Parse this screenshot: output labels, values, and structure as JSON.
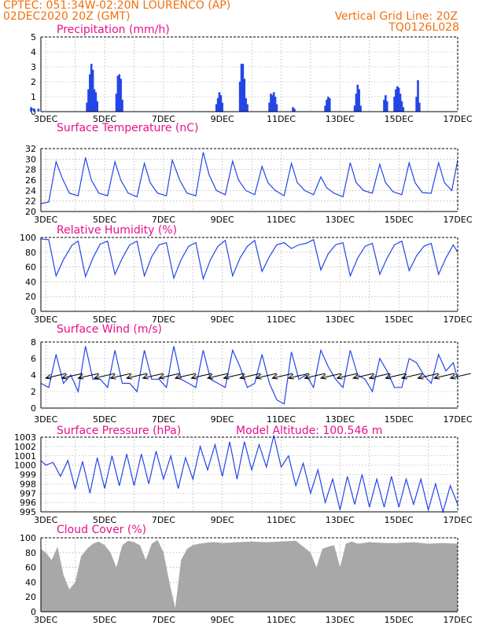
{
  "header": {
    "line1": "CPTEC:   051:34W-02:20N   LOURENCO (AP)",
    "line2": "02DEC2020 20Z (GMT)",
    "grid_note": "Vertical Grid Line: 20Z",
    "run_id": "TQ0126L028"
  },
  "colors": {
    "series": "#2346e6",
    "title": "#e8108a",
    "header": "#f07010",
    "cloud": "#a8a8a8",
    "grid": "#9a9a9a"
  },
  "x_axis": {
    "labels": [
      "3DEC",
      "5DEC",
      "7DEC",
      "9DEC",
      "11DEC",
      "13DEC",
      "15DEC",
      "17DEC"
    ],
    "day_start": 2.8333,
    "day_end": 17.0
  },
  "chart_data": [
    {
      "id": "precip",
      "type": "bar",
      "title": "Precipitation (mm/h)",
      "ylim": [
        0,
        5
      ],
      "yticks": [
        0,
        1,
        2,
        3,
        4,
        5
      ],
      "x": [
        2.5,
        2.6,
        2.75,
        4.4,
        4.45,
        4.5,
        4.55,
        4.6,
        4.65,
        4.7,
        4.75,
        5.4,
        5.45,
        5.5,
        5.55,
        5.6,
        8.8,
        8.85,
        8.9,
        8.95,
        9.0,
        9.6,
        9.65,
        9.7,
        9.75,
        9.8,
        9.85,
        10.6,
        10.65,
        10.7,
        10.75,
        10.8,
        10.85,
        11.4,
        11.45,
        12.5,
        12.55,
        12.6,
        12.65,
        13.5,
        13.55,
        13.6,
        13.65,
        13.7,
        14.5,
        14.55,
        14.6,
        14.85,
        14.9,
        14.95,
        15.0,
        15.05,
        15.1,
        15.15,
        15.6,
        15.65,
        15.7
      ],
      "values": [
        0.3,
        0.2,
        0.2,
        0.6,
        1.5,
        2.5,
        3.2,
        2.8,
        1.5,
        1.3,
        0.7,
        1.2,
        2.4,
        2.5,
        2.2,
        0.8,
        0.5,
        0.9,
        1.3,
        1.1,
        0.6,
        2.0,
        3.2,
        3.2,
        2.2,
        0.9,
        0.5,
        0.6,
        1.2,
        1.1,
        1.3,
        1.0,
        0.5,
        0.3,
        0.2,
        0.4,
        0.8,
        1.0,
        0.9,
        0.4,
        1.2,
        1.8,
        1.5,
        0.4,
        0.8,
        1.1,
        0.7,
        1.0,
        1.5,
        1.7,
        1.6,
        1.2,
        0.7,
        0.3,
        1.0,
        2.1,
        0.6
      ]
    },
    {
      "id": "temp",
      "type": "line",
      "title": "Surface Temperature (nC)",
      "ylim": [
        20,
        32
      ],
      "yticks": [
        20,
        22,
        24,
        26,
        28,
        30,
        32
      ],
      "x": [
        2.83,
        3.1,
        3.35,
        3.55,
        3.8,
        4.1,
        4.35,
        4.55,
        4.8,
        5.1,
        5.35,
        5.55,
        5.8,
        6.1,
        6.35,
        6.55,
        6.8,
        7.1,
        7.3,
        7.55,
        7.8,
        8.1,
        8.35,
        8.55,
        8.8,
        9.1,
        9.35,
        9.55,
        9.8,
        10.1,
        10.35,
        10.55,
        10.8,
        11.1,
        11.35,
        11.55,
        11.8,
        12.1,
        12.35,
        12.55,
        12.8,
        13.1,
        13.35,
        13.55,
        13.8,
        14.1,
        14.35,
        14.55,
        14.8,
        15.1,
        15.35,
        15.55,
        15.8,
        16.1,
        16.35,
        16.55,
        16.8,
        17.0
      ],
      "values": [
        21.5,
        21.8,
        29.5,
        26.5,
        23.5,
        23.0,
        30.3,
        26.0,
        23.5,
        23.0,
        29.5,
        26.0,
        23.5,
        22.8,
        29.2,
        25.5,
        23.5,
        23.0,
        29.8,
        26.0,
        23.5,
        23.0,
        31.3,
        27.0,
        24.0,
        23.2,
        29.6,
        26.0,
        24.0,
        23.2,
        28.6,
        25.5,
        24.0,
        23.0,
        29.2,
        25.5,
        24.0,
        23.2,
        26.6,
        24.5,
        23.5,
        22.8,
        29.3,
        25.5,
        24.0,
        23.5,
        29.0,
        25.5,
        23.8,
        23.2,
        29.3,
        25.5,
        23.6,
        23.5,
        29.3,
        25.5,
        24.0,
        29.8
      ]
    },
    {
      "id": "rh",
      "type": "line",
      "title": "Relative Humidity (%)",
      "ylim": [
        0,
        100
      ],
      "yticks": [
        0,
        20,
        40,
        60,
        80,
        100
      ],
      "x": [
        2.83,
        3.1,
        3.35,
        3.6,
        3.9,
        4.1,
        4.35,
        4.6,
        4.85,
        5.1,
        5.35,
        5.6,
        5.85,
        6.1,
        6.35,
        6.6,
        6.85,
        7.1,
        7.35,
        7.6,
        7.85,
        8.1,
        8.35,
        8.6,
        8.85,
        9.1,
        9.35,
        9.6,
        9.85,
        10.1,
        10.35,
        10.6,
        10.85,
        11.1,
        11.35,
        11.6,
        11.85,
        12.1,
        12.35,
        12.6,
        12.85,
        13.1,
        13.35,
        13.6,
        13.85,
        14.1,
        14.35,
        14.6,
        14.85,
        15.1,
        15.35,
        15.6,
        15.85,
        16.1,
        16.35,
        16.6,
        16.85,
        17.0
      ],
      "values": [
        98,
        97,
        48,
        70,
        90,
        95,
        47,
        72,
        91,
        95,
        50,
        72,
        90,
        95,
        48,
        74,
        90,
        93,
        45,
        70,
        88,
        93,
        44,
        70,
        88,
        96,
        48,
        72,
        88,
        96,
        54,
        74,
        90,
        93,
        85,
        90,
        92,
        97,
        56,
        78,
        90,
        93,
        48,
        72,
        88,
        92,
        50,
        72,
        90,
        95,
        55,
        75,
        88,
        92,
        50,
        72,
        90,
        80
      ]
    },
    {
      "id": "wind",
      "type": "line",
      "title": "Surface Wind (m/s)",
      "ylim": [
        0,
        8
      ],
      "yticks": [
        0,
        2,
        4,
        6,
        8
      ],
      "x": [
        2.83,
        3.1,
        3.35,
        3.6,
        3.85,
        4.1,
        4.35,
        4.6,
        4.85,
        5.1,
        5.35,
        5.6,
        5.85,
        6.1,
        6.35,
        6.6,
        6.85,
        7.1,
        7.35,
        7.6,
        7.85,
        8.1,
        8.35,
        8.6,
        8.85,
        9.1,
        9.35,
        9.6,
        9.85,
        10.1,
        10.35,
        10.6,
        10.85,
        11.1,
        11.35,
        11.6,
        11.85,
        12.1,
        12.35,
        12.6,
        12.85,
        13.1,
        13.35,
        13.6,
        13.85,
        14.1,
        14.35,
        14.6,
        14.85,
        15.1,
        15.35,
        15.6,
        15.85,
        16.1,
        16.35,
        16.6,
        16.85,
        17.0
      ],
      "values": [
        3.0,
        2.5,
        6.5,
        3.0,
        4.0,
        2.0,
        7.5,
        3.5,
        3.5,
        2.5,
        7.0,
        3.0,
        3.0,
        2.0,
        7.0,
        3.5,
        3.5,
        2.5,
        7.5,
        3.5,
        3.0,
        2.5,
        7.0,
        3.5,
        3.0,
        2.5,
        7.0,
        5.0,
        2.5,
        3.0,
        6.5,
        3.0,
        1.0,
        0.5,
        6.8,
        3.5,
        4.0,
        2.5,
        7.0,
        5.0,
        3.5,
        2.5,
        7.0,
        4.0,
        3.5,
        2.0,
        6.0,
        4.5,
        2.5,
        2.5,
        6.0,
        5.5,
        4.0,
        3.0,
        6.5,
        4.5,
        5.5,
        3.5
      ]
    },
    {
      "id": "pres",
      "type": "line",
      "title": "Surface Pressure (hPa)",
      "ylim": [
        995,
        1003
      ],
      "yticks": [
        995,
        996,
        997,
        998,
        999,
        1000,
        1001,
        1002,
        1003
      ],
      "x": [
        2.83,
        3.0,
        3.25,
        3.5,
        3.75,
        4.0,
        4.25,
        4.5,
        4.75,
        5.0,
        5.25,
        5.5,
        5.75,
        6.0,
        6.25,
        6.5,
        6.75,
        7.0,
        7.25,
        7.5,
        7.75,
        8.0,
        8.25,
        8.5,
        8.75,
        9.0,
        9.25,
        9.5,
        9.75,
        10.0,
        10.25,
        10.5,
        10.75,
        11.0,
        11.25,
        11.5,
        11.75,
        12.0,
        12.25,
        12.5,
        12.75,
        13.0,
        13.25,
        13.5,
        13.75,
        14.0,
        14.25,
        14.5,
        14.75,
        15.0,
        15.25,
        15.5,
        15.75,
        16.0,
        16.25,
        16.5,
        16.75,
        17.0
      ],
      "values": [
        1000.5,
        1000.0,
        1000.3,
        998.8,
        1000.5,
        997.5,
        1000.4,
        997.0,
        1000.8,
        997.5,
        1001.0,
        997.8,
        1001.2,
        997.8,
        1001.2,
        998.0,
        1001.5,
        998.5,
        1001.0,
        997.5,
        1000.8,
        998.5,
        1002.0,
        999.5,
        1002.2,
        998.8,
        1002.5,
        998.5,
        1002.5,
        999.5,
        1002.2,
        999.8,
        1003.2,
        999.8,
        1001.0,
        997.8,
        1000.2,
        997.0,
        999.5,
        996.0,
        998.5,
        995.2,
        998.8,
        995.8,
        999.0,
        995.5,
        998.5,
        995.5,
        998.8,
        995.5,
        998.5,
        995.8,
        998.5,
        995.2,
        998.0,
        995.0,
        997.8,
        995.8
      ]
    },
    {
      "id": "cloud",
      "type": "area",
      "title": "Cloud Cover (%)",
      "ylim": [
        0,
        100
      ],
      "yticks": [
        0,
        20,
        40,
        60,
        80,
        100
      ],
      "x": [
        2.83,
        3.0,
        3.2,
        3.4,
        3.6,
        3.8,
        4.0,
        4.2,
        4.4,
        4.6,
        4.8,
        5.0,
        5.2,
        5.4,
        5.6,
        5.8,
        6.0,
        6.2,
        6.4,
        6.6,
        6.8,
        7.0,
        7.2,
        7.4,
        7.6,
        7.8,
        8.0,
        8.2,
        8.4,
        8.6,
        8.8,
        9.0,
        9.5,
        10.0,
        10.5,
        11.0,
        11.5,
        12.0,
        12.2,
        12.4,
        12.6,
        12.8,
        13.0,
        13.2,
        13.4,
        13.6,
        13.8,
        14.0,
        14.5,
        15.0,
        15.5,
        16.0,
        16.5,
        17.0
      ],
      "values": [
        85,
        80,
        70,
        88,
        50,
        30,
        40,
        75,
        85,
        92,
        95,
        90,
        80,
        60,
        90,
        96,
        94,
        90,
        70,
        92,
        97,
        80,
        40,
        5,
        70,
        85,
        90,
        92,
        93,
        94,
        94,
        93,
        94,
        95,
        94,
        95,
        96,
        80,
        60,
        85,
        88,
        90,
        60,
        92,
        95,
        92,
        93,
        94,
        93,
        93,
        94,
        92,
        93,
        92
      ]
    }
  ],
  "extra_labels": {
    "model_altitude": "Model Altitude: 100.546 m"
  }
}
